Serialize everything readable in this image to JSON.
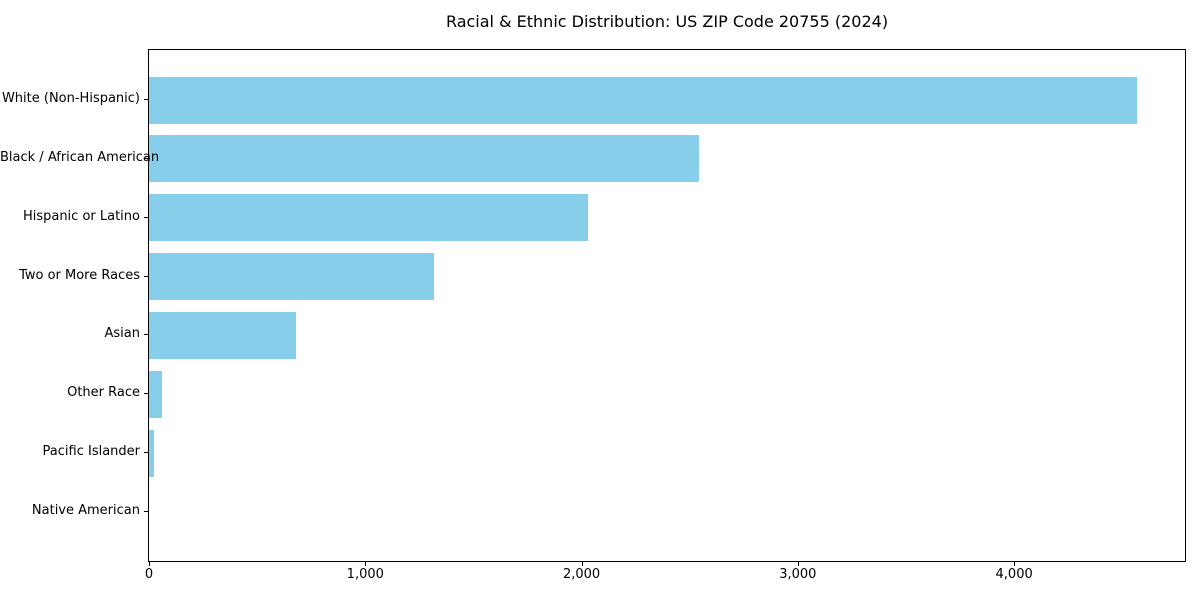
{
  "chart_data": {
    "type": "bar",
    "orientation": "horizontal",
    "title": "Racial & Ethnic Distribution: US ZIP Code 20755 (2024)",
    "categories": [
      "White (Non-Hispanic)",
      "Black / African American",
      "Hispanic or Latino",
      "Two or More Races",
      "Asian",
      "Other Race",
      "Pacific Islander",
      "Native American"
    ],
    "values": [
      4570,
      2545,
      2030,
      1320,
      680,
      60,
      25,
      0
    ],
    "bar_color": "#87CEEB",
    "axis_color": "#000000",
    "background_color": "#ffffff",
    "xlabel": "",
    "ylabel": "",
    "xlim": [
      0,
      4790
    ],
    "x_ticks": [
      0,
      1000,
      2000,
      3000,
      4000
    ],
    "x_tick_labels": [
      "0",
      "1,000",
      "2,000",
      "3,000",
      "4,000"
    ],
    "grid": false,
    "legend": null
  }
}
